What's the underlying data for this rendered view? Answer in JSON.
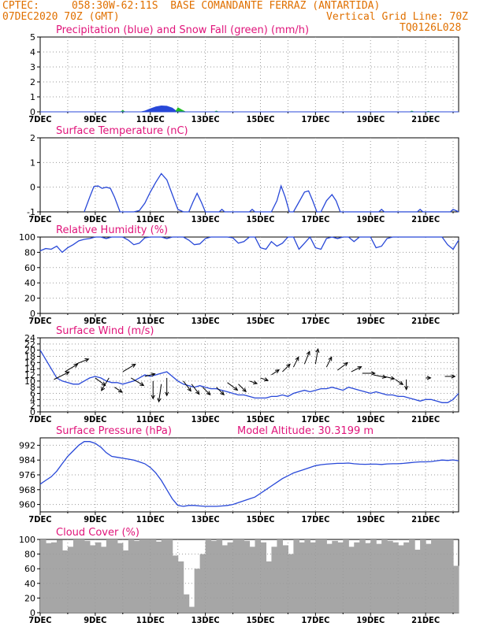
{
  "header": {
    "source": "CPTEC:",
    "location": "058:30W-62:11S  BASE COMANDANTE FERRAZ (ANTARTIDA)",
    "run": "07DEC2020 70Z (GMT)",
    "grid_note": "Vertical Grid Line: 70Z",
    "code": "TQ0126L028",
    "altitude": "Model Altitude: 30.3199 m"
  },
  "colors": {
    "header": "#e07000",
    "panel_title": "#e0147a",
    "series": "#2848d8",
    "snow": "#22c022",
    "cloud": "#a6a6a6",
    "grid": "#9a9a9a"
  },
  "chart_data": [
    {
      "id": "precip",
      "type": "area",
      "title": "Precipitation (blue) and Snow Fall (green) (mm/h)",
      "x_tick_labels": [
        "7DEC",
        "9DEC",
        "11DEC",
        "13DEC",
        "15DEC",
        "17DEC",
        "19DEC",
        "21DEC"
      ],
      "xlim": [
        7,
        22.2
      ],
      "ylim": [
        0,
        5
      ],
      "y_ticks": [
        0,
        1,
        2,
        3,
        4,
        5
      ],
      "series": [
        {
          "name": "blue",
          "x": [
            10.6,
            10.8,
            11.0,
            11.2,
            11.4,
            11.6,
            11.8,
            12.0
          ],
          "y": [
            0,
            0.08,
            0.22,
            0.35,
            0.42,
            0.4,
            0.28,
            0
          ]
        },
        {
          "name": "green",
          "x": [
            9.9,
            10.0,
            10.1,
            11.9,
            12.0,
            12.15,
            12.3,
            13.3,
            13.4,
            13.5,
            20.4,
            20.5,
            20.6,
            21.0,
            21.1,
            21.2
          ],
          "y": [
            0,
            0.12,
            0,
            0,
            0.3,
            0.15,
            0,
            0,
            0.08,
            0,
            0,
            0.08,
            0,
            0,
            0.06,
            0
          ]
        }
      ]
    },
    {
      "id": "temp",
      "type": "line",
      "title": "Surface Temperature (nC)",
      "x_tick_labels": [
        "7DEC",
        "9DEC",
        "11DEC",
        "13DEC",
        "15DEC",
        "17DEC",
        "19DEC",
        "21DEC"
      ],
      "xlim": [
        7,
        22.2
      ],
      "ylim": [
        -1,
        2
      ],
      "y_ticks": [
        -1,
        0,
        1,
        2
      ],
      "x": [
        8.6,
        8.8,
        8.95,
        9.1,
        9.25,
        9.4,
        9.55,
        9.7,
        9.9,
        10.1,
        10.4,
        10.6,
        10.8,
        11.0,
        11.2,
        11.4,
        11.6,
        11.8,
        12.0,
        12.2,
        12.4,
        12.55,
        12.7,
        12.85,
        13.0,
        13.5,
        13.6,
        13.7,
        14.6,
        14.7,
        14.8,
        15.1,
        15.4,
        15.6,
        15.75,
        15.9,
        16.05,
        16.2,
        16.4,
        16.6,
        16.75,
        16.9,
        17.05,
        17.2,
        17.4,
        17.6,
        17.75,
        17.9,
        18.1,
        18.3,
        19.3,
        19.4,
        19.5,
        20.7,
        20.8,
        20.9,
        21.9,
        22.0,
        22.1,
        22.2
      ],
      "y": [
        -1,
        -0.4,
        0.02,
        0.05,
        -0.05,
        0.0,
        -0.05,
        -0.4,
        -1,
        -1,
        -1,
        -0.95,
        -0.65,
        -0.2,
        0.2,
        0.55,
        0.3,
        -0.3,
        -0.9,
        -1,
        -1,
        -0.6,
        -0.25,
        -0.6,
        -1,
        -1,
        -0.9,
        -1,
        -1,
        -0.9,
        -1,
        -1,
        -1,
        -0.55,
        0.05,
        -0.4,
        -1,
        -1,
        -0.6,
        -0.2,
        -0.15,
        -0.55,
        -1,
        -1,
        -0.55,
        -0.3,
        -0.55,
        -1,
        -1,
        -1,
        -1,
        -0.9,
        -1,
        -1,
        -0.9,
        -1,
        -1,
        -0.9,
        -0.95,
        -1
      ]
    },
    {
      "id": "rh",
      "type": "line",
      "title": "Relative Humidity (%)",
      "x_tick_labels": [
        "7DEC",
        "9DEC",
        "11DEC",
        "13DEC",
        "15DEC",
        "17DEC",
        "19DEC",
        "21DEC"
      ],
      "xlim": [
        7,
        22.2
      ],
      "ylim": [
        0,
        100
      ],
      "y_ticks": [
        0,
        20,
        40,
        60,
        80,
        100
      ],
      "x": [
        7.0,
        7.2,
        7.4,
        7.6,
        7.8,
        8.0,
        8.2,
        8.4,
        8.6,
        8.8,
        9.0,
        9.2,
        9.4,
        9.6,
        9.8,
        10.0,
        10.2,
        10.4,
        10.6,
        10.8,
        11.0,
        11.2,
        11.4,
        11.6,
        11.8,
        12.0,
        12.2,
        12.4,
        12.6,
        12.8,
        13.0,
        13.2,
        13.4,
        13.6,
        13.8,
        14.0,
        14.2,
        14.4,
        14.6,
        14.8,
        15.0,
        15.2,
        15.4,
        15.6,
        15.8,
        16.0,
        16.2,
        16.4,
        16.6,
        16.8,
        17.0,
        17.2,
        17.4,
        17.6,
        17.8,
        18.0,
        18.2,
        18.4,
        18.6,
        18.8,
        19.0,
        19.2,
        19.4,
        19.6,
        19.8,
        20.0,
        20.2,
        20.4,
        20.6,
        20.8,
        21.0,
        21.2,
        21.4,
        21.6,
        21.8,
        22.0,
        22.2
      ],
      "y": [
        82,
        85,
        84,
        88,
        80,
        86,
        90,
        95,
        97,
        98,
        100,
        100,
        98,
        100,
        100,
        100,
        96,
        90,
        92,
        99,
        100,
        100,
        100,
        98,
        100,
        100,
        100,
        96,
        90,
        91,
        98,
        100,
        100,
        100,
        100,
        99,
        92,
        94,
        100,
        100,
        86,
        84,
        94,
        88,
        92,
        100,
        100,
        84,
        92,
        100,
        86,
        84,
        98,
        100,
        98,
        100,
        100,
        94,
        100,
        100,
        100,
        86,
        88,
        98,
        100,
        100,
        100,
        100,
        100,
        100,
        100,
        100,
        100,
        100,
        90,
        84,
        96
      ]
    },
    {
      "id": "wind",
      "type": "line",
      "title": "Surface Wind (m/s)",
      "x_tick_labels": [
        "7DEC",
        "9DEC",
        "11DEC",
        "13DEC",
        "15DEC",
        "17DEC",
        "19DEC",
        "21DEC"
      ],
      "xlim": [
        7,
        22.2
      ],
      "ylim": [
        0,
        24
      ],
      "y_ticks": [
        0,
        2,
        4,
        6,
        8,
        10,
        12,
        14,
        16,
        18,
        20,
        22,
        24
      ],
      "x": [
        7.0,
        7.2,
        7.4,
        7.6,
        7.8,
        8.0,
        8.2,
        8.4,
        8.6,
        8.8,
        9.0,
        9.2,
        9.4,
        9.6,
        9.8,
        10.0,
        10.2,
        10.4,
        10.6,
        10.8,
        11.0,
        11.2,
        11.4,
        11.6,
        11.8,
        12.0,
        12.2,
        12.4,
        12.6,
        12.8,
        13.0,
        13.2,
        13.4,
        13.6,
        13.8,
        14.0,
        14.2,
        14.4,
        14.6,
        14.8,
        15.0,
        15.2,
        15.4,
        15.6,
        15.8,
        16.0,
        16.2,
        16.4,
        16.6,
        16.8,
        17.0,
        17.2,
        17.4,
        17.6,
        17.8,
        18.0,
        18.2,
        18.4,
        18.6,
        18.8,
        19.0,
        19.2,
        19.4,
        19.6,
        19.8,
        20.0,
        20.2,
        20.4,
        20.6,
        20.8,
        21.0,
        21.2,
        21.4,
        21.6,
        21.8,
        22.0,
        22.2
      ],
      "y": [
        20,
        17,
        14,
        11,
        10,
        9.5,
        9,
        9,
        10,
        11,
        11.5,
        11,
        10,
        9.5,
        9.5,
        9,
        9.5,
        10,
        11,
        12,
        11.5,
        12,
        12.5,
        13,
        11.5,
        10,
        9,
        8.5,
        8,
        8.5,
        8,
        7.5,
        7.5,
        7,
        6.5,
        6,
        5.5,
        5.5,
        5,
        4.5,
        4.5,
        4.5,
        5,
        5,
        5.5,
        5,
        6,
        6.5,
        7,
        6.5,
        7,
        7.5,
        7.5,
        8,
        7.5,
        7,
        8,
        7.5,
        7,
        6.5,
        6,
        6.5,
        6,
        5.5,
        5.5,
        5,
        5,
        4.5,
        4,
        3.5,
        4,
        4,
        3.5,
        3,
        3,
        4,
        6
      ],
      "arrows": [
        {
          "x": 7.5,
          "y": 10.5,
          "u": 6,
          "v": 3
        },
        {
          "x": 7.9,
          "y": 13,
          "u": 5,
          "v": 3
        },
        {
          "x": 8.3,
          "y": 15.5,
          "u": 5,
          "v": 2
        },
        {
          "x": 9.0,
          "y": 11,
          "u": 4,
          "v": -3
        },
        {
          "x": 9.5,
          "y": 11,
          "u": -3,
          "v": -5
        },
        {
          "x": 9.7,
          "y": 8,
          "u": 3,
          "v": -2
        },
        {
          "x": 10.0,
          "y": 13,
          "u": 5,
          "v": 3
        },
        {
          "x": 10.3,
          "y": 11,
          "u": 5,
          "v": -3
        },
        {
          "x": 10.8,
          "y": 11.5,
          "u": 4,
          "v": 1
        },
        {
          "x": 11.1,
          "y": 10,
          "u": 0,
          "v": -7
        },
        {
          "x": 11.4,
          "y": 9,
          "u": -1,
          "v": -7
        },
        {
          "x": 11.6,
          "y": 11,
          "u": 0,
          "v": -7
        },
        {
          "x": 12.2,
          "y": 10,
          "u": 3,
          "v": -4
        },
        {
          "x": 12.5,
          "y": 9,
          "u": 3,
          "v": -4
        },
        {
          "x": 12.9,
          "y": 8,
          "u": 3,
          "v": -3
        },
        {
          "x": 13.4,
          "y": 8,
          "u": 3,
          "v": -3
        },
        {
          "x": 13.8,
          "y": 9.5,
          "u": 4,
          "v": -3
        },
        {
          "x": 14.2,
          "y": 9,
          "u": 3,
          "v": -3
        },
        {
          "x": 14.6,
          "y": 10,
          "u": 3,
          "v": -1
        },
        {
          "x": 15.0,
          "y": 11,
          "u": 3,
          "v": -1
        },
        {
          "x": 15.4,
          "y": 12,
          "u": 3,
          "v": 2
        },
        {
          "x": 15.8,
          "y": 13,
          "u": 3,
          "v": 3
        },
        {
          "x": 16.2,
          "y": 14.5,
          "u": 2,
          "v": 4
        },
        {
          "x": 16.6,
          "y": 15.5,
          "u": 2,
          "v": 5
        },
        {
          "x": 17.0,
          "y": 15.5,
          "u": 1,
          "v": 6
        },
        {
          "x": 17.4,
          "y": 14.5,
          "u": 2,
          "v": 4
        },
        {
          "x": 17.8,
          "y": 13.5,
          "u": 4,
          "v": 3
        },
        {
          "x": 18.3,
          "y": 13,
          "u": 4,
          "v": 2
        },
        {
          "x": 18.7,
          "y": 12.5,
          "u": 5,
          "v": 0
        },
        {
          "x": 19.1,
          "y": 12,
          "u": 5,
          "v": -1
        },
        {
          "x": 19.5,
          "y": 11.5,
          "u": 4,
          "v": -1
        },
        {
          "x": 19.9,
          "y": 10.5,
          "u": 3,
          "v": -2
        },
        {
          "x": 20.3,
          "y": 10.5,
          "u": 0,
          "v": -4
        },
        {
          "x": 21.0,
          "y": 11,
          "u": 2,
          "v": 0
        },
        {
          "x": 21.7,
          "y": 11.5,
          "u": 4,
          "v": 0
        }
      ]
    },
    {
      "id": "pressure",
      "type": "line",
      "title": "Surface Pressure (hPa)",
      "x_tick_labels": [
        "7DEC",
        "9DEC",
        "11DEC",
        "13DEC",
        "15DEC",
        "17DEC",
        "19DEC",
        "21DEC"
      ],
      "xlim": [
        7,
        22.2
      ],
      "ylim": [
        956,
        996
      ],
      "y_ticks": [
        960,
        968,
        976,
        984,
        992
      ],
      "x": [
        7.0,
        7.2,
        7.4,
        7.6,
        7.8,
        8.0,
        8.2,
        8.4,
        8.6,
        8.8,
        9.0,
        9.2,
        9.4,
        9.6,
        9.8,
        10.0,
        10.2,
        10.4,
        10.6,
        10.8,
        11.0,
        11.2,
        11.4,
        11.6,
        11.8,
        12.0,
        12.2,
        12.4,
        12.6,
        12.8,
        13.0,
        13.2,
        13.4,
        13.6,
        13.8,
        14.0,
        14.2,
        14.4,
        14.6,
        14.8,
        15.0,
        15.2,
        15.4,
        15.6,
        15.8,
        16.0,
        16.2,
        16.4,
        16.6,
        16.8,
        17.0,
        17.2,
        17.4,
        17.6,
        17.8,
        18.0,
        18.2,
        18.4,
        18.6,
        18.8,
        19.0,
        19.2,
        19.4,
        19.6,
        19.8,
        20.0,
        20.2,
        20.4,
        20.6,
        20.8,
        21.0,
        21.2,
        21.4,
        21.6,
        21.8,
        22.0,
        22.2
      ],
      "y": [
        971,
        973,
        975,
        978,
        982,
        986,
        989,
        992,
        994,
        994,
        993,
        991,
        988,
        986,
        985.5,
        985,
        984.5,
        984,
        983,
        982,
        980,
        977,
        973,
        968,
        963,
        959.5,
        959,
        959.5,
        959.5,
        959.2,
        959,
        959,
        959,
        959.2,
        959.5,
        960,
        961,
        962,
        963,
        964,
        966,
        968,
        970,
        972,
        974,
        975.5,
        977,
        978,
        979,
        980,
        981,
        981.5,
        981.8,
        982,
        982.2,
        982.2,
        982.4,
        982,
        981.8,
        981.7,
        981.8,
        981.8,
        981.6,
        981.9,
        982,
        982,
        982.2,
        982.5,
        982.8,
        983,
        983,
        983.2,
        983.6,
        984,
        983.8,
        984.1,
        983.6
      ]
    },
    {
      "id": "cloud",
      "type": "bar",
      "title": "Cloud Cover (%)",
      "x_tick_labels": [
        "7DEC",
        "9DEC",
        "11DEC",
        "13DEC",
        "15DEC",
        "17DEC",
        "19DEC",
        "21DEC"
      ],
      "xlim": [
        7,
        22.2
      ],
      "ylim": [
        0,
        100
      ],
      "y_ticks": [
        0,
        20,
        40,
        60,
        80,
        100
      ],
      "x": [
        7.0,
        7.2,
        7.4,
        7.6,
        7.8,
        8.0,
        8.2,
        8.4,
        8.6,
        8.8,
        9.0,
        9.2,
        9.4,
        9.6,
        9.8,
        10.0,
        10.2,
        10.4,
        10.6,
        10.8,
        11.0,
        11.2,
        11.4,
        11.6,
        11.8,
        12.0,
        12.2,
        12.4,
        12.6,
        12.8,
        13.0,
        13.2,
        13.4,
        13.6,
        13.8,
        14.0,
        14.2,
        14.4,
        14.6,
        14.8,
        15.0,
        15.2,
        15.4,
        15.6,
        15.8,
        16.0,
        16.2,
        16.4,
        16.6,
        16.8,
        17.0,
        17.2,
        17.4,
        17.6,
        17.8,
        18.0,
        18.2,
        18.4,
        18.6,
        18.8,
        19.0,
        19.2,
        19.4,
        19.6,
        19.8,
        20.0,
        20.2,
        20.4,
        20.6,
        20.8,
        21.0,
        21.2,
        21.4,
        21.6,
        21.8,
        22.0
      ],
      "y": [
        100,
        95,
        96,
        99,
        85,
        90,
        100,
        100,
        98,
        92,
        96,
        90,
        100,
        100,
        95,
        85,
        100,
        98,
        100,
        100,
        100,
        97,
        100,
        100,
        78,
        70,
        25,
        8,
        60,
        80,
        100,
        98,
        100,
        92,
        96,
        100,
        100,
        98,
        90,
        100,
        96,
        70,
        90,
        100,
        92,
        80,
        100,
        96,
        100,
        96,
        100,
        100,
        94,
        98,
        96,
        100,
        90,
        96,
        100,
        95,
        100,
        94,
        100,
        98,
        96,
        92,
        96,
        100,
        86,
        100,
        94,
        100,
        100,
        100,
        100,
        64
      ]
    }
  ]
}
